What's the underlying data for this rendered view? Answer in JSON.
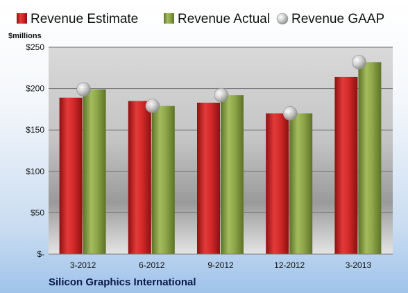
{
  "chart_data": {
    "type": "bar",
    "unit_label": "$millions",
    "company": "Silicon Graphics International",
    "categories": [
      "3-2012",
      "6-2012",
      "9-2012",
      "12-2012",
      "3-2013"
    ],
    "series": [
      {
        "name": "Revenue Estimate",
        "kind": "bar",
        "color": "#d42a2a",
        "values": [
          189,
          185,
          183,
          170,
          214
        ]
      },
      {
        "name": "Revenue Actual",
        "kind": "bar",
        "color": "#8fa84a",
        "values": [
          199,
          179,
          192,
          170,
          232
        ]
      },
      {
        "name": "Revenue GAAP",
        "kind": "marker",
        "color": "#b9b9b9",
        "values": [
          199,
          179,
          192,
          170,
          232
        ]
      }
    ],
    "ylim": [
      0,
      250
    ],
    "yticks": [
      0,
      50,
      100,
      150,
      200,
      250
    ],
    "ytick_labels": [
      "$-",
      "$50",
      "$100",
      "$150",
      "$200",
      "$250"
    ],
    "grid": true,
    "legend_position": "top"
  }
}
